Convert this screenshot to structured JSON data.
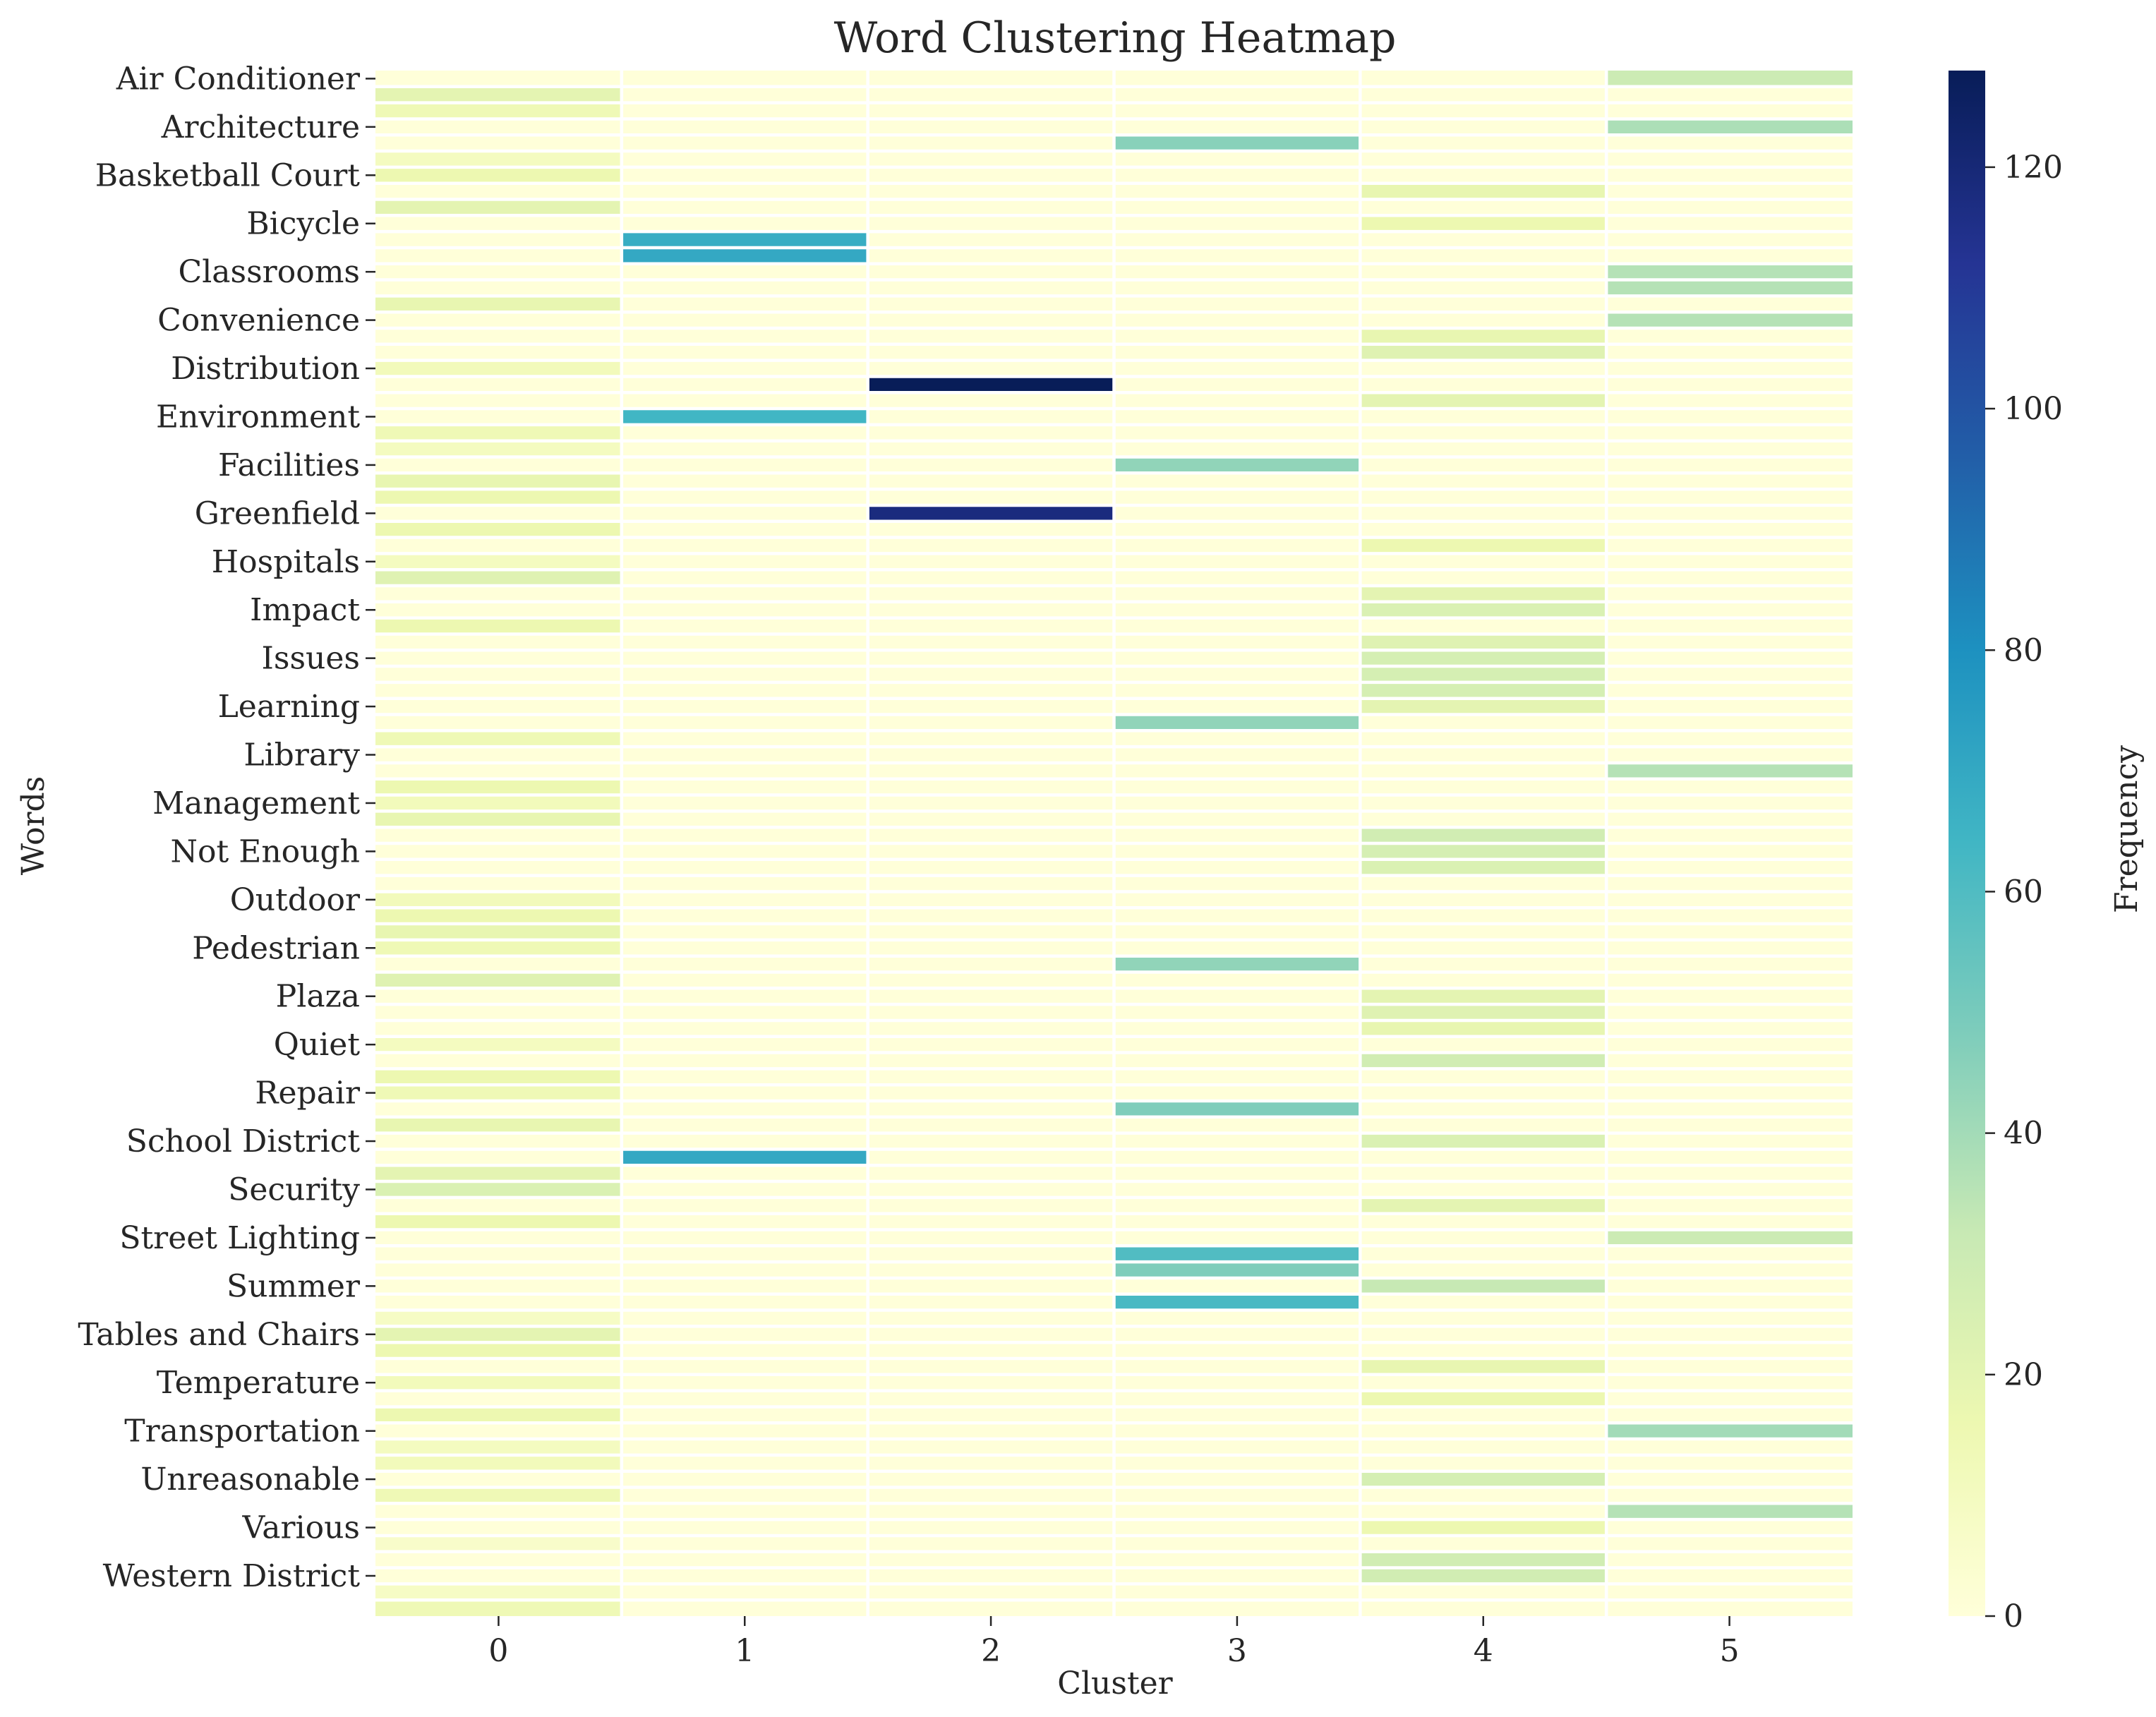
{
  "chart_data": {
    "type": "heatmap",
    "title": "Word Clustering Heatmap",
    "xlabel": "Cluster",
    "ylabel": "Words",
    "colorbar_label": "Frequency",
    "colormap": "YlGnBu",
    "vmin": 0,
    "vmax": 128,
    "colorbar_ticks": [
      0,
      20,
      40,
      60,
      80,
      100,
      120
    ],
    "x_ticks": [
      "0",
      "1",
      "2",
      "3",
      "4",
      "5"
    ],
    "y_tick_labels": [
      "Air Conditioner",
      "Architecture",
      "Basketball Court",
      "Bicycle",
      "Classrooms",
      "Convenience",
      "Distribution",
      "Environment",
      "Facilities",
      "Greenfield",
      "Hospitals",
      "Impact",
      "Issues",
      "Learning",
      "Library",
      "Management",
      "Not Enough",
      "Outdoor",
      "Pedestrian",
      "Plaza",
      "Quiet",
      "Repair",
      "School District",
      "Security",
      "Street Lighting",
      "Summer",
      "Tables and Chairs",
      "Temperature",
      "Transportation",
      "Unreasonable",
      "Various",
      "Western District"
    ],
    "y_tick_every": 3,
    "n_rows": 96,
    "n_clusters": 6,
    "cells": [
      [
        0,
        5,
        30
      ],
      [
        1,
        0,
        20
      ],
      [
        2,
        0,
        14
      ],
      [
        3,
        5,
        38
      ],
      [
        4,
        3,
        46
      ],
      [
        5,
        0,
        10
      ],
      [
        6,
        0,
        16
      ],
      [
        7,
        4,
        18
      ],
      [
        8,
        0,
        20
      ],
      [
        9,
        4,
        16
      ],
      [
        10,
        1,
        68
      ],
      [
        11,
        1,
        70
      ],
      [
        12,
        5,
        36
      ],
      [
        13,
        5,
        36
      ],
      [
        14,
        0,
        18
      ],
      [
        15,
        5,
        36
      ],
      [
        16,
        4,
        18
      ],
      [
        17,
        4,
        22
      ],
      [
        18,
        0,
        12
      ],
      [
        19,
        2,
        128
      ],
      [
        20,
        4,
        20
      ],
      [
        21,
        1,
        64
      ],
      [
        22,
        0,
        14
      ],
      [
        23,
        0,
        10
      ],
      [
        24,
        3,
        44
      ],
      [
        25,
        0,
        18
      ],
      [
        26,
        0,
        16
      ],
      [
        27,
        2,
        118
      ],
      [
        28,
        0,
        16
      ],
      [
        29,
        4,
        16
      ],
      [
        30,
        0,
        10
      ],
      [
        31,
        0,
        22
      ],
      [
        32,
        4,
        20
      ],
      [
        33,
        4,
        24
      ],
      [
        34,
        0,
        16
      ],
      [
        35,
        4,
        22
      ],
      [
        36,
        4,
        26
      ],
      [
        37,
        4,
        26
      ],
      [
        38,
        4,
        26
      ],
      [
        39,
        4,
        20
      ],
      [
        40,
        3,
        44
      ],
      [
        41,
        0,
        14
      ],
      [
        43,
        5,
        36
      ],
      [
        44,
        0,
        16
      ],
      [
        45,
        0,
        12
      ],
      [
        46,
        0,
        18
      ],
      [
        47,
        4,
        28
      ],
      [
        48,
        4,
        26
      ],
      [
        49,
        4,
        24
      ],
      [
        51,
        0,
        12
      ],
      [
        52,
        0,
        16
      ],
      [
        53,
        0,
        18
      ],
      [
        54,
        0,
        14
      ],
      [
        55,
        3,
        44
      ],
      [
        56,
        0,
        22
      ],
      [
        57,
        4,
        20
      ],
      [
        58,
        4,
        22
      ],
      [
        59,
        4,
        18
      ],
      [
        60,
        0,
        10
      ],
      [
        61,
        4,
        28
      ],
      [
        62,
        0,
        16
      ],
      [
        63,
        0,
        14
      ],
      [
        64,
        3,
        48
      ],
      [
        65,
        0,
        18
      ],
      [
        66,
        4,
        24
      ],
      [
        67,
        1,
        70
      ],
      [
        68,
        0,
        20
      ],
      [
        69,
        0,
        24
      ],
      [
        70,
        4,
        20
      ],
      [
        71,
        0,
        16
      ],
      [
        72,
        5,
        30
      ],
      [
        73,
        3,
        60
      ],
      [
        74,
        3,
        48
      ],
      [
        75,
        4,
        32
      ],
      [
        76,
        3,
        62
      ],
      [
        77,
        0,
        8
      ],
      [
        78,
        0,
        20
      ],
      [
        79,
        0,
        16
      ],
      [
        80,
        4,
        18
      ],
      [
        81,
        0,
        12
      ],
      [
        82,
        4,
        16
      ],
      [
        83,
        0,
        16
      ],
      [
        84,
        5,
        40
      ],
      [
        85,
        0,
        10
      ],
      [
        86,
        0,
        12
      ],
      [
        87,
        4,
        26
      ],
      [
        88,
        0,
        14
      ],
      [
        89,
        5,
        36
      ],
      [
        90,
        4,
        16
      ],
      [
        91,
        0,
        6
      ],
      [
        92,
        4,
        28
      ],
      [
        93,
        4,
        28
      ],
      [
        94,
        0,
        8
      ],
      [
        95,
        0,
        14
      ]
    ]
  }
}
